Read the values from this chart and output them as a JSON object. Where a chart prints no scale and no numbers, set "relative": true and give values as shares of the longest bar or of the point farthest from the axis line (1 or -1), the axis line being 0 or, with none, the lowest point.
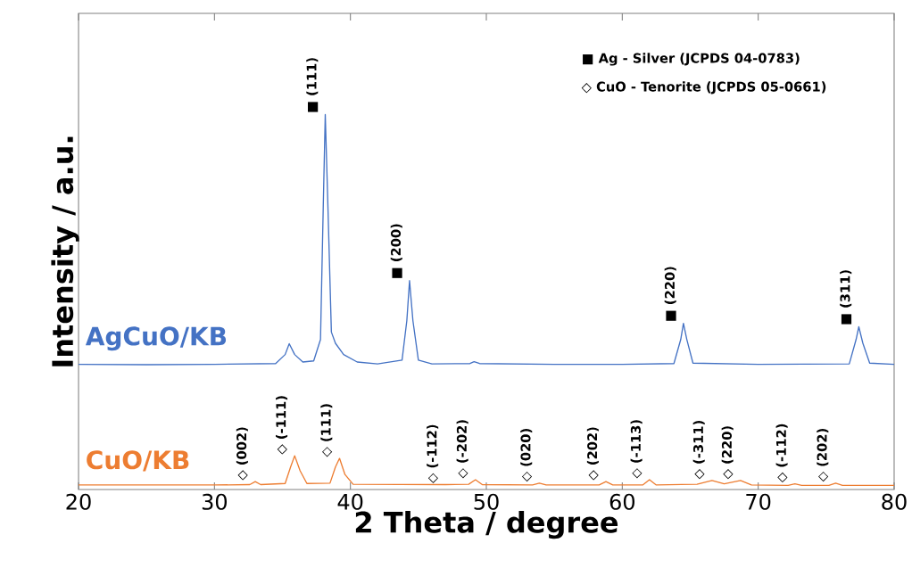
{
  "chart_data": {
    "type": "line",
    "xlabel": "2 Theta / degree",
    "ylabel": "Intensity / a.u.",
    "relative": true,
    "tick_labels": "x",
    "xlim": [
      20,
      80
    ],
    "xticks": [
      20,
      30,
      40,
      50,
      60,
      70,
      80
    ],
    "series": [
      {
        "name": "AgCuO/KB",
        "color": "#4472c4",
        "x": [
          20,
          25,
          30,
          34.5,
          35.2,
          35.5,
          35.9,
          36.5,
          37.3,
          37.8,
          38.0,
          38.15,
          38.35,
          38.6,
          38.9,
          39.5,
          40.5,
          42,
          43.8,
          44.15,
          44.35,
          44.6,
          45.0,
          46,
          48.8,
          49.1,
          49.5,
          55,
          60,
          63.8,
          64.3,
          64.5,
          64.75,
          65.2,
          70,
          76.7,
          77.2,
          77.4,
          77.7,
          78.2,
          80
        ],
        "values": [
          0.334,
          0.333,
          0.334,
          0.336,
          0.36,
          0.389,
          0.36,
          0.34,
          0.343,
          0.4,
          0.75,
          1.0,
          0.75,
          0.42,
          0.39,
          0.36,
          0.34,
          0.335,
          0.345,
          0.45,
          0.557,
          0.45,
          0.345,
          0.335,
          0.336,
          0.341,
          0.336,
          0.334,
          0.334,
          0.336,
          0.4,
          0.443,
          0.4,
          0.337,
          0.334,
          0.335,
          0.4,
          0.434,
          0.39,
          0.337,
          0.334
        ]
      },
      {
        "name": "CuO/KB",
        "color": "#ed7d31",
        "x": [
          20,
          30,
          32.6,
          33.0,
          33.4,
          35.2,
          35.6,
          35.9,
          36.3,
          36.8,
          38.5,
          38.9,
          39.2,
          39.6,
          40.2,
          47.0,
          48.7,
          49.2,
          49.7,
          53.4,
          53.9,
          54.4,
          58.3,
          58.8,
          59.3,
          61.5,
          62.0,
          62.5,
          65.5,
          66.6,
          67.5,
          68.7,
          69.5,
          72.2,
          72.7,
          73.2,
          75.2,
          75.7,
          76.2,
          80
        ],
        "values": [
          0.012,
          0.012,
          0.013,
          0.021,
          0.013,
          0.016,
          0.06,
          0.09,
          0.05,
          0.016,
          0.017,
          0.06,
          0.083,
          0.04,
          0.014,
          0.013,
          0.014,
          0.026,
          0.013,
          0.012,
          0.017,
          0.012,
          0.012,
          0.021,
          0.012,
          0.012,
          0.026,
          0.012,
          0.014,
          0.024,
          0.015,
          0.024,
          0.012,
          0.011,
          0.015,
          0.011,
          0.011,
          0.017,
          0.011,
          0.011
        ]
      }
    ],
    "annotations": [
      "■ Ag - Silver (JCPDS 04-0783)",
      "◇ CuO - Tenorite (JCPDS 05-0661)",
      {
        "text": "■ (111)",
        "x": 38.15,
        "y": 1.0
      },
      {
        "text": "■ (200)",
        "x": 44.35,
        "y": 0.557
      },
      {
        "text": "■ (220)",
        "x": 64.5,
        "y": 0.443
      },
      {
        "text": "■ (311)",
        "x": 77.4,
        "y": 0.434
      },
      {
        "text": "◇ (002)",
        "x": 33.0,
        "y": 0.021
      },
      {
        "text": "◇ (-111)",
        "x": 35.9,
        "y": 0.09
      },
      {
        "text": "◇ (111)",
        "x": 39.2,
        "y": 0.083
      },
      {
        "text": "◇ (-112)",
        "x": 47.0,
        "y": 0.013
      },
      {
        "text": "◇ (-202)",
        "x": 49.2,
        "y": 0.026
      },
      {
        "text": "◇ (020)",
        "x": 53.9,
        "y": 0.017
      },
      {
        "text": "◇ (202)",
        "x": 58.8,
        "y": 0.021
      },
      {
        "text": "◇ (-113)",
        "x": 62.0,
        "y": 0.026
      },
      {
        "text": "◇ (-311)",
        "x": 66.6,
        "y": 0.024
      },
      {
        "text": "◇ (220)",
        "x": 68.7,
        "y": 0.024
      },
      {
        "text": "◇ (-112)",
        "x": 72.7,
        "y": 0.015
      },
      {
        "text": "◇ (202)",
        "x": 75.7,
        "y": 0.017
      }
    ]
  }
}
